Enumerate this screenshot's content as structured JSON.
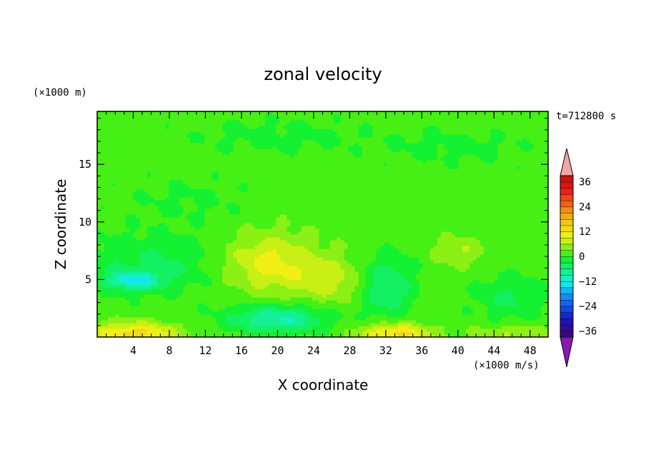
{
  "chart_data": {
    "type": "heatmap",
    "title": "zonal velocity",
    "xlabel": "X coordinate",
    "ylabel": "Z coordinate",
    "x_unit_note": "(×1000 m/s)",
    "y_unit_note": "(×1000 m)",
    "time_label": "t=712800 s",
    "xlim": [
      0,
      50
    ],
    "ylim": [
      0,
      19.6
    ],
    "x_ticks": [
      4,
      8,
      12,
      16,
      20,
      24,
      28,
      32,
      36,
      40,
      44,
      48
    ],
    "y_ticks": [
      5,
      10,
      15
    ],
    "colorbar": {
      "levels": [
        -42,
        -39,
        -36,
        -33,
        -30,
        -27,
        -24,
        -21,
        -18,
        -15,
        -12,
        -9,
        -6,
        -3,
        0,
        3,
        6,
        9,
        12,
        15,
        18,
        21,
        24,
        27,
        30,
        33,
        36,
        39,
        42
      ],
      "tick_labels": [
        "36",
        "24",
        "12",
        "0",
        "−12",
        "−24",
        "−36"
      ],
      "tick_values": [
        36,
        24,
        12,
        0,
        -12,
        -24,
        -36
      ],
      "under_color": "#8c18b4",
      "over_color": "#f4a6a6"
    },
    "field_description_values": {
      "background": 1.5,
      "bands": [
        {
          "region": "bottom surface warm (x 0–10, z 0–1.2)",
          "value": 12
        },
        {
          "region": "bottom surface warm (x 30–38, z 0–1.0)",
          "value": 12
        },
        {
          "region": "cold core (x 2–6, z 4.5–5.5)",
          "value": -9
        },
        {
          "region": "cold pool (x 14–24, z 0.5–2.5)",
          "value": -8
        },
        {
          "region": "cold pool (x 30–34, z 3–7)",
          "value": -6
        },
        {
          "region": "warm plume (x 14–28, z 3–10)",
          "value": 9
        }
      ]
    }
  },
  "colors": {
    "frame": "#000000",
    "palette": [
      "#3c0a78",
      "#320a96",
      "#1e14b4",
      "#1428d2",
      "#1446e6",
      "#1464f0",
      "#148cf0",
      "#14b4f0",
      "#14e6f0",
      "#14f0c8",
      "#14f096",
      "#14f064",
      "#14f032",
      "#46f014",
      "#8cf014",
      "#c8f014",
      "#f0f014",
      "#f0dc14",
      "#f0c814",
      "#f0aa14",
      "#f08c14",
      "#f06414",
      "#f04614",
      "#f01e14",
      "#dc1414",
      "#c81414"
    ]
  }
}
